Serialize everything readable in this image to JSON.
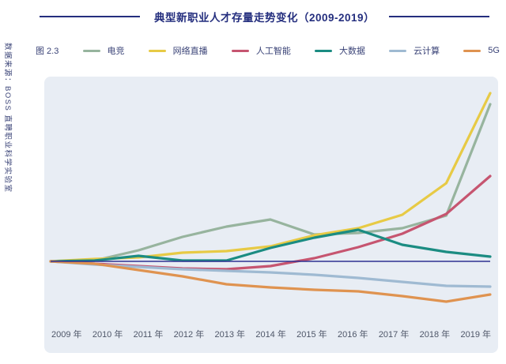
{
  "header": {
    "title": "典型新职业人才存量走势变化（2009-2019）",
    "rule_color": "#242e7e"
  },
  "source_note": "数据来源：BOSS 直聘职业科学实验室",
  "figure_label": "图 2.3",
  "chart_data": {
    "type": "line",
    "title": "典型新职业人才存量走势变化（2009-2019）",
    "x_categories": [
      "2009 年",
      "2010 年",
      "2011 年",
      "2012 年",
      "2013 年",
      "2014 年",
      "2015 年",
      "2016 年",
      "2017 年",
      "2018 年",
      "2019 年"
    ],
    "y_axis": {
      "visible": false,
      "baseline_value": 0,
      "units": "relative talent-stock index vs 2009 baseline (no numeric ticks shown)"
    },
    "grid": false,
    "legend_position": "top",
    "plot_background": "#e8edf4",
    "baseline_color": "#2e3192",
    "series": [
      {
        "name": "电竞",
        "color": "#97b49e",
        "values": [
          0,
          1,
          14,
          31,
          44,
          53,
          34,
          36,
          42,
          58,
          199
        ]
      },
      {
        "name": "网络直播",
        "color": "#e7ca45",
        "values": [
          0,
          3,
          5,
          11,
          13,
          19,
          33,
          42,
          59,
          99,
          213
        ]
      },
      {
        "name": "人工智能",
        "color": "#c65570",
        "values": [
          0,
          -3,
          -6,
          -9,
          -10,
          -6,
          4,
          18,
          35,
          60,
          108
        ]
      },
      {
        "name": "大数据",
        "color": "#1b8c82",
        "values": [
          0,
          1,
          7,
          1,
          1,
          17,
          30,
          40,
          21,
          12,
          6
        ]
      },
      {
        "name": "云计算",
        "color": "#9fbad2",
        "values": [
          0,
          -4,
          -7,
          -10,
          -12,
          -14,
          -17,
          -21,
          -26,
          -31,
          -32
        ]
      },
      {
        "name": "5G",
        "color": "#df9350",
        "values": [
          0,
          -3,
          -11,
          -19,
          -29,
          -33,
          -36,
          -38,
          -44,
          -51,
          -42
        ]
      }
    ]
  }
}
